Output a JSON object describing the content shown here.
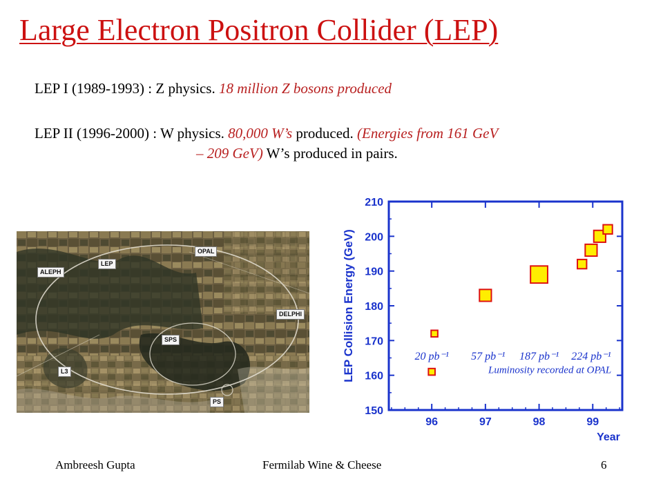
{
  "slide": {
    "title": "Large Electron Positron Collider (LEP)",
    "lines": {
      "lep1_prefix": "LEP I   (1989-1993) : Z physics. ",
      "lep1_red": "18 million Z bosons produced",
      "lep2_prefix": "LEP II (1996-2000) : W physics. ",
      "lep2_red_a": "80,000 W’s",
      "lep2_mid": " produced. ",
      "lep2_red_b": "(Energies from 161 GeV",
      "lep2_cont_red": "– 209 GeV)",
      "lep2_cont_rest": " W’s produced in pairs."
    },
    "colors": {
      "title": "#cc1111",
      "highlight": "#b82020",
      "chart_axis": "#1a33cc",
      "marker_fill": "#ffee00",
      "marker_edge": "#dd1111"
    }
  },
  "aerial_photo": {
    "labels": {
      "opal": "OPAL",
      "lep": "LEP",
      "aleph": "ALEPH",
      "delphi": "DELPHI",
      "sps": "SPS",
      "l3": "L3",
      "ps": "PS"
    }
  },
  "chart_data": {
    "type": "scatter",
    "ylabel": "LEP Collision Energy (GeV)",
    "xlabel": "Year",
    "x_ticks": [
      "96",
      "97",
      "98",
      "99"
    ],
    "y_ticks": [
      150,
      160,
      170,
      180,
      190,
      200,
      210
    ],
    "ylim": [
      150,
      210
    ],
    "xlim": [
      95.2,
      99.55
    ],
    "grid": false,
    "points": [
      {
        "x": 96.0,
        "y": 161,
        "size": 1
      },
      {
        "x": 96.05,
        "y": 172,
        "size": 1
      },
      {
        "x": 97.0,
        "y": 183,
        "size": 2
      },
      {
        "x": 98.0,
        "y": 189,
        "size": 3
      },
      {
        "x": 98.8,
        "y": 192,
        "size": 1.5
      },
      {
        "x": 98.97,
        "y": 196,
        "size": 2
      },
      {
        "x": 99.13,
        "y": 200,
        "size": 2
      },
      {
        "x": 99.28,
        "y": 202,
        "size": 1.5
      }
    ],
    "luminosity_labels": [
      "20 pb⁻¹",
      "57 pb⁻¹",
      "187 pb⁻¹",
      "224 pb⁻¹"
    ],
    "luminosity_x": [
      96.0,
      97.05,
      98.0,
      98.97
    ],
    "annotation": "Luminosity recorded at OPAL"
  },
  "footer": {
    "author": "Ambreesh Gupta",
    "event": "Fermilab Wine & Cheese",
    "page": "6"
  }
}
